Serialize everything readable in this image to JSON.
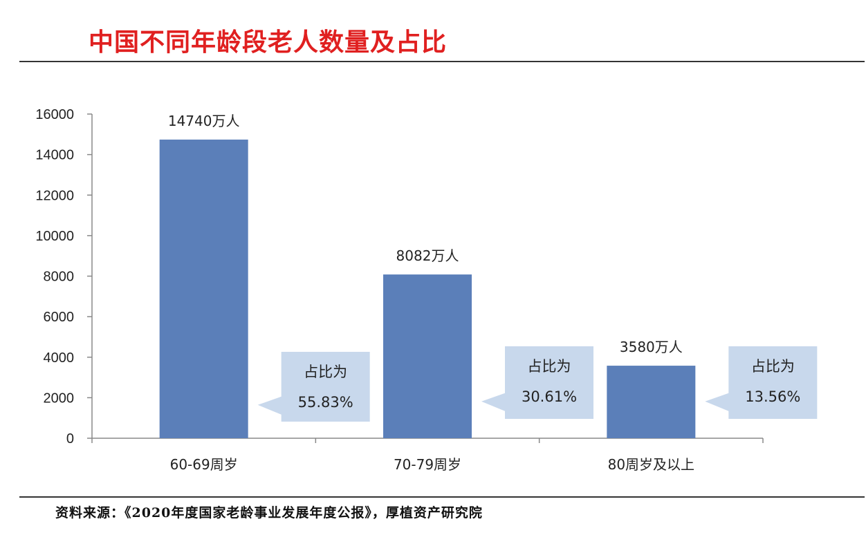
{
  "header": {
    "title": "中国不同年龄段老人数量及占比"
  },
  "footer": {
    "source": "资料来源：《2020年度国家老龄事业发展年度公报》，厚植资产研究院"
  },
  "colors": {
    "bar": "#5b7fb9",
    "callout": "#c8d8ec",
    "title": "#e02020"
  },
  "chart_data": {
    "type": "bar",
    "categories": [
      "60-69周岁",
      "70-79周岁",
      "80周岁及以上"
    ],
    "values": [
      14740,
      8082,
      3580
    ],
    "data_labels": [
      "14740万人",
      "8082万人",
      "3580万人"
    ],
    "ylim": [
      0,
      16000
    ],
    "yticks": [
      0,
      2000,
      4000,
      6000,
      8000,
      10000,
      12000,
      14000,
      16000
    ],
    "grid": false,
    "annotations": [
      {
        "line1": "占比为",
        "line2": "55.83%"
      },
      {
        "line1": "占比为",
        "line2": "30.61%"
      },
      {
        "line1": "占比为",
        "line2": "13.56%"
      }
    ]
  }
}
